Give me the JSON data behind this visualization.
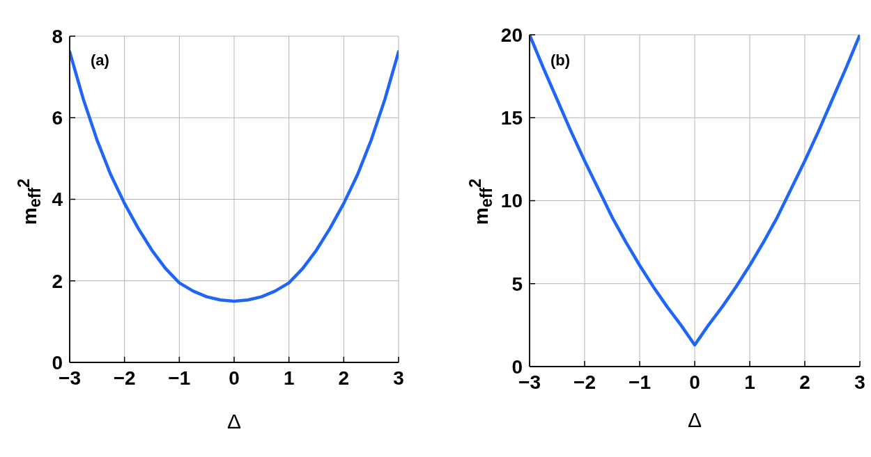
{
  "chart_data": [
    {
      "type": "line",
      "annotations": [
        "(a)"
      ],
      "xlabel": "Δ",
      "ylabel": "m$_{eff}$$^{2}$",
      "x": [
        -3,
        -2.75,
        -2.5,
        -2.25,
        -2,
        -1.75,
        -1.5,
        -1.25,
        -1,
        -0.75,
        -0.5,
        -0.25,
        0,
        0.25,
        0.5,
        0.75,
        1,
        1.25,
        1.5,
        1.75,
        2,
        2.25,
        2.5,
        2.75,
        3
      ],
      "series": [
        {
          "color": "#1f66f6",
          "values": [
            7.62,
            6.45,
            5.45,
            4.6,
            3.9,
            3.29,
            2.75,
            2.3,
            1.95,
            1.75,
            1.61,
            1.53,
            1.5,
            1.53,
            1.61,
            1.75,
            1.95,
            2.3,
            2.75,
            3.29,
            3.9,
            4.6,
            5.45,
            6.45,
            7.62
          ]
        }
      ],
      "xlim": [
        -3,
        3
      ],
      "xticks": [
        {
          "value": -3,
          "label": "−3"
        },
        {
          "value": -2,
          "label": "−2"
        },
        {
          "value": -1,
          "label": "−1"
        },
        0,
        1,
        2,
        3
      ],
      "ylim": [
        0,
        8
      ],
      "yticks": [
        0,
        2,
        4,
        6,
        8
      ],
      "grid": true,
      "marker": "none",
      "line_style": "solid"
    },
    {
      "type": "line",
      "annotations": [
        "(b)"
      ],
      "xlabel": "Δ",
      "ylabel": "m$_{eff}$$^{2}$",
      "x": [
        -3,
        -2.75,
        -2.5,
        -2.25,
        -2,
        -1.75,
        -1.5,
        -1.25,
        -1,
        -0.75,
        -0.5,
        -0.25,
        0,
        0.25,
        0.5,
        0.75,
        1,
        1.25,
        1.5,
        1.75,
        2,
        2.25,
        2.5,
        2.75,
        3
      ],
      "series": [
        {
          "color": "#1f66f6",
          "values": [
            20,
            18.0,
            16.1,
            14.2,
            12.4,
            10.7,
            9.0,
            7.5,
            6.1,
            4.8,
            3.6,
            2.5,
            1.3,
            2.5,
            3.6,
            4.8,
            6.1,
            7.5,
            9.0,
            10.7,
            12.4,
            14.2,
            16.1,
            18.0,
            20
          ]
        }
      ],
      "xlim": [
        -3,
        3
      ],
      "xticks": [
        {
          "value": -3,
          "label": "−3"
        },
        {
          "value": -2,
          "label": "−2"
        },
        {
          "value": -1,
          "label": "−1"
        },
        0,
        1,
        2,
        3
      ],
      "ylim": [
        0,
        20
      ],
      "yticks": [
        0,
        5,
        10,
        15,
        20
      ],
      "grid": true,
      "marker": "none",
      "line_style": "solid"
    }
  ]
}
